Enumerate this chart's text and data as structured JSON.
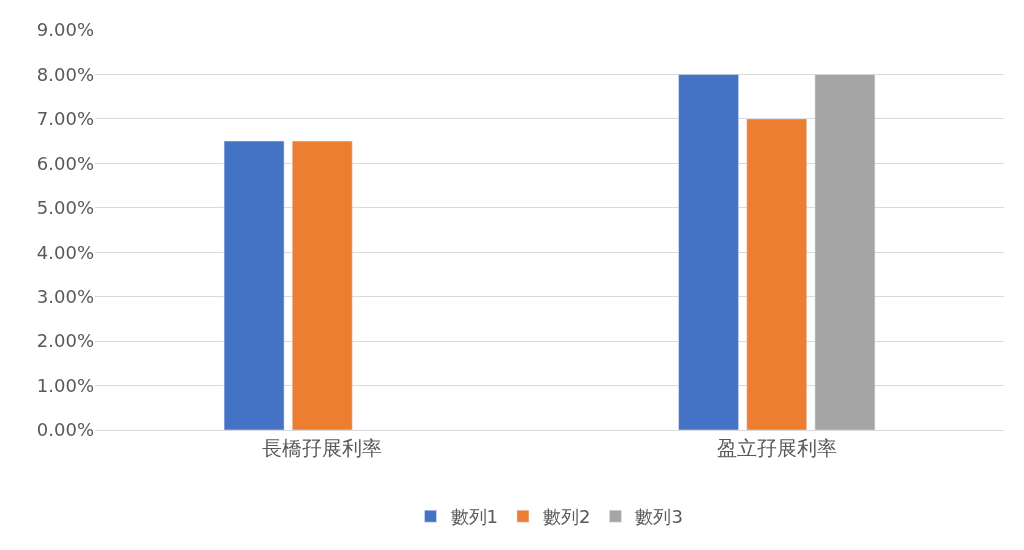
{
  "chart_data": {
    "type": "bar",
    "categories": [
      "長橋孖展利率",
      "盈立孖展利率"
    ],
    "series": [
      {
        "name": "數列1",
        "color": "#4472c4",
        "values": [
          6.5,
          8
        ]
      },
      {
        "name": "數列2",
        "color": "#ed7d31",
        "values": [
          6.5,
          7
        ]
      },
      {
        "name": "數列3",
        "color": "#a5a5a5",
        "values": [
          null,
          8
        ]
      }
    ],
    "ylim": [
      0,
      9
    ],
    "yticks": [
      {
        "value": 0,
        "label": "0.00%"
      },
      {
        "value": 1,
        "label": "1.00%"
      },
      {
        "value": 2,
        "label": "2.00%"
      },
      {
        "value": 3,
        "label": "3.00%"
      },
      {
        "value": 4,
        "label": "4.00%"
      },
      {
        "value": 5,
        "label": "5.00%"
      },
      {
        "value": 6,
        "label": "6.00%"
      },
      {
        "value": 7,
        "label": "7.00%"
      },
      {
        "value": 8,
        "label": "8.00%"
      },
      {
        "value": 9,
        "label": "9.00%"
      }
    ],
    "grid": "y",
    "legend": "bottom"
  }
}
